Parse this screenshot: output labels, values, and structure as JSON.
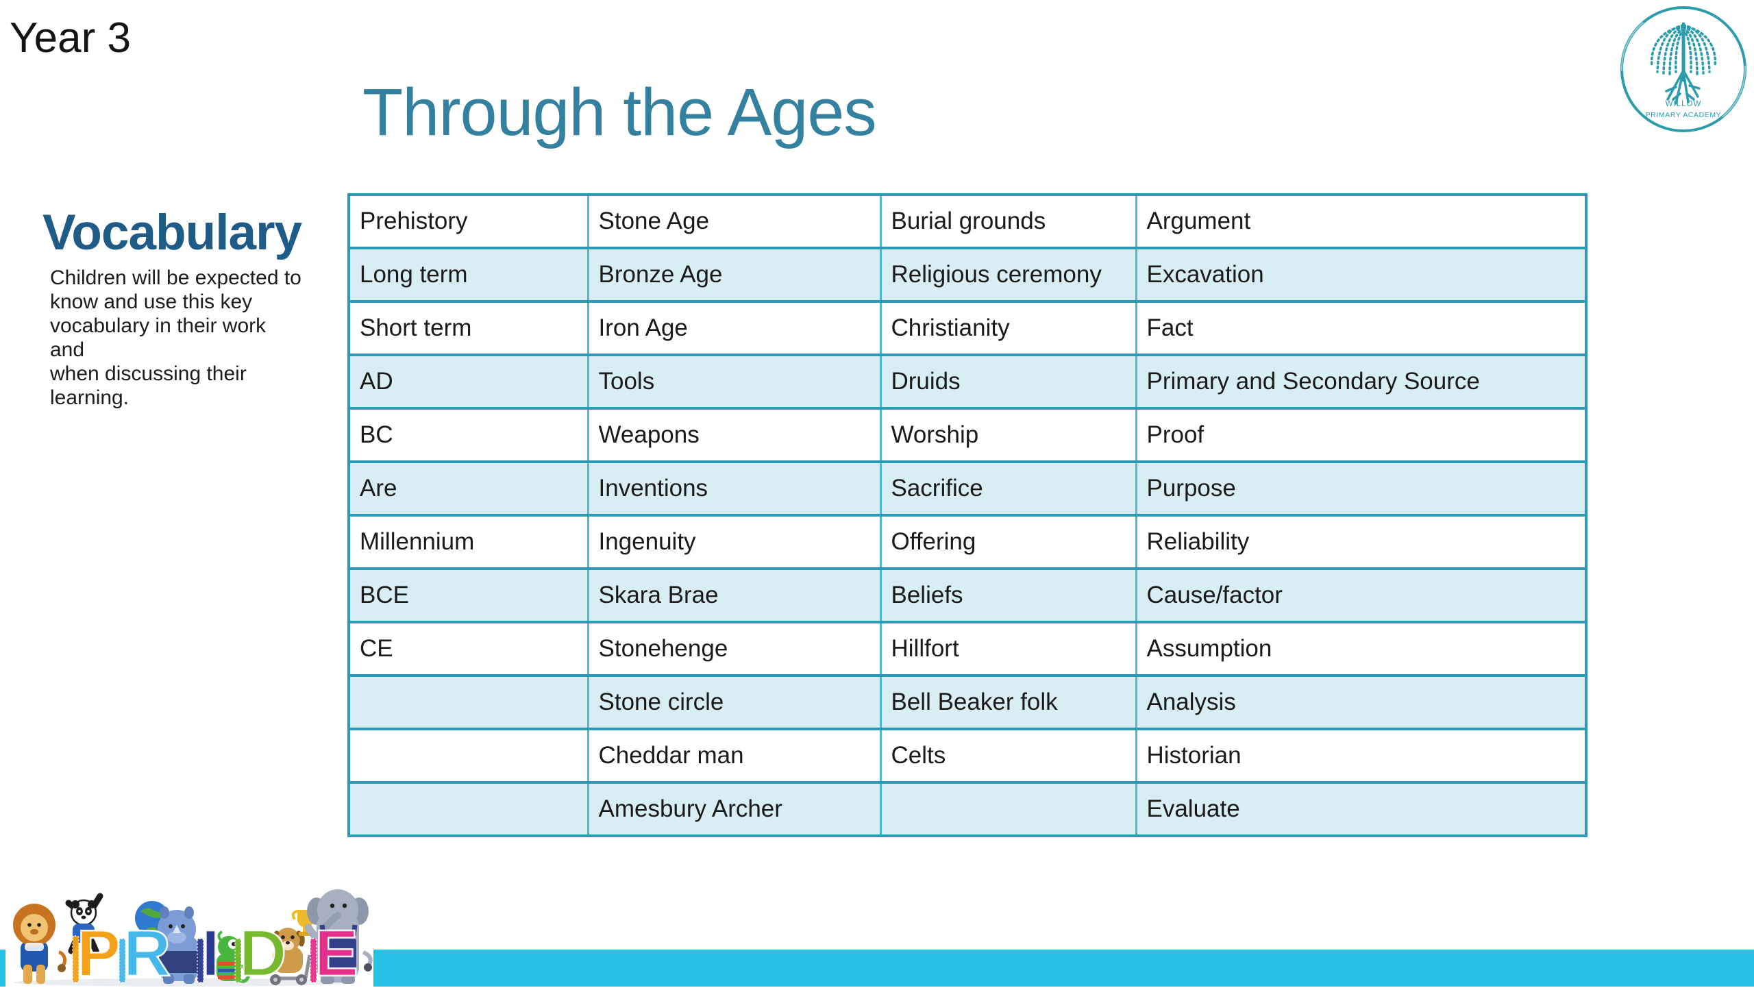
{
  "slide": {
    "year_label": "Year 3",
    "title": "Through the Ages"
  },
  "logo": {
    "name_line1": "WILLOW",
    "name_line2": "PRIMARY ACADEMY"
  },
  "vocabulary": {
    "heading": "Vocabulary",
    "description": "Children will be expected to\nknow and use this key\nvocabulary in their work and\nwhen discussing their\nlearning."
  },
  "vocab_table": {
    "rows": [
      [
        "Prehistory",
        "Stone Age",
        "Burial grounds",
        "Argument"
      ],
      [
        "Long term",
        "Bronze Age",
        "Religious ceremony",
        "Excavation"
      ],
      [
        "Short term",
        "Iron Age",
        "Christianity",
        "Fact"
      ],
      [
        "AD",
        "Tools",
        "Druids",
        "Primary and Secondary Source"
      ],
      [
        "BC",
        "Weapons",
        "Worship",
        "Proof"
      ],
      [
        "Are",
        "Inventions",
        "Sacrifice",
        "Purpose"
      ],
      [
        "Millennium",
        "Ingenuity",
        "Offering",
        "Reliability"
      ],
      [
        "BCE",
        "Skara Brae",
        "Beliefs",
        "Cause/factor"
      ],
      [
        "CE",
        "Stonehenge",
        "Hillfort",
        "Assumption"
      ],
      [
        "",
        "Stone circle",
        "Bell Beaker folk",
        "Analysis"
      ],
      [
        "",
        "Cheddar man",
        "Celts",
        "Historian"
      ],
      [
        "",
        "Amesbury Archer",
        "",
        "Evaluate"
      ]
    ]
  },
  "pride_logo": {
    "letters": [
      {
        "ch": "P",
        "color": "#f3a119"
      },
      {
        "ch": "R",
        "color": "#45b7e8"
      },
      {
        "ch": "I",
        "color": "#2c3b92"
      },
      {
        "ch": "D",
        "color": "#76b92f"
      },
      {
        "ch": "E",
        "color": "#e62f8d"
      }
    ]
  },
  "colors": {
    "title_teal": "#33809f",
    "heading_blue": "#1e5b87",
    "table_border_horizontal": "#2e98b5",
    "table_border_vertical": "#4fb7d1",
    "table_row_alt_fill": "#d8edf4",
    "footer_bar_cyan": "#25c2e6",
    "logo_teal": "#2a9cac"
  }
}
